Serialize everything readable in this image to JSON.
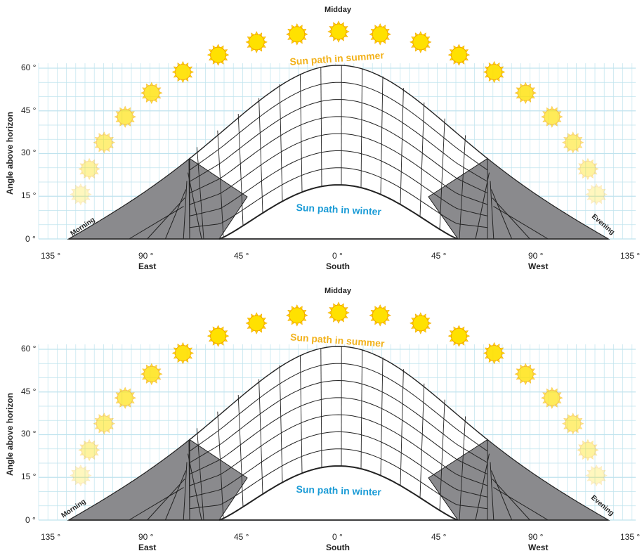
{
  "panels": [
    {
      "midday": "Midday",
      "summer_label": "Sun path in summer",
      "winter_label": "Sun path in winter",
      "morning": "Morning",
      "evening": "Evening",
      "y_axis_title": "Angle above horizon",
      "y_ticks": [
        "60 °",
        "45 °",
        "30 °",
        "15 °",
        "0 °"
      ],
      "x_ticks": [
        "135 °",
        "90 °",
        "45 °",
        "0 °",
        "45 °",
        "90 °",
        "135 °"
      ],
      "x_dirs": [
        "East",
        "South",
        "West"
      ]
    },
    {
      "midday": "Midday",
      "summer_label": "Sun path in summer",
      "winter_label": "Sun path in winter",
      "morning": "Morning",
      "evening": "Evening",
      "y_axis_title": "Angle above horizon",
      "y_ticks": [
        "60 °",
        "45 °",
        "30 °",
        "15 °",
        "0 °"
      ],
      "x_ticks": [
        "135 °",
        "90 °",
        "45 °",
        "0 °",
        "45 °",
        "90 °",
        "135 °"
      ],
      "x_dirs": [
        "East",
        "South",
        "West"
      ]
    }
  ],
  "colors": {
    "grid": "#bfe3ee",
    "sun": "#ffe100",
    "sun_edge": "#f2a400",
    "summer_text": "#f2b21c",
    "winter_text": "#1a9bd6",
    "dark_band": "#8a8a8d",
    "dome_line": "#222222"
  },
  "icons": {
    "sun": "sun-icon"
  }
}
